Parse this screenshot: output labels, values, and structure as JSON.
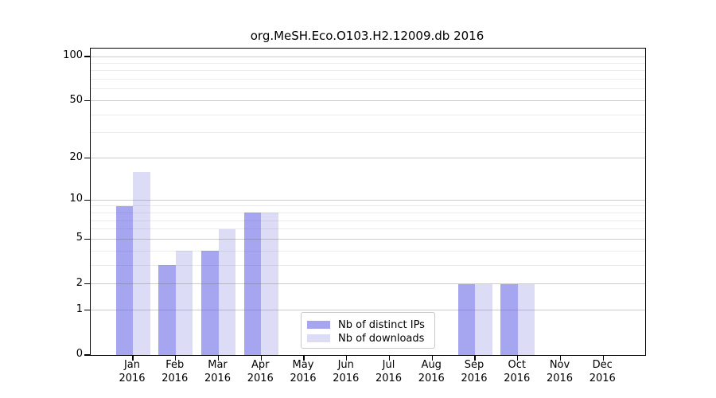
{
  "chart_data": {
    "type": "bar",
    "title": "org.MeSH.Eco.O103.H2.12009.db 2016",
    "year_label": "2016",
    "categories": [
      "Jan",
      "Feb",
      "Mar",
      "Apr",
      "May",
      "Jun",
      "Jul",
      "Aug",
      "Sep",
      "Oct",
      "Nov",
      "Dec"
    ],
    "series": [
      {
        "name": "Nb of distinct IPs",
        "color": "#a5a5f0",
        "values": [
          9,
          3,
          4,
          8,
          0,
          0,
          0,
          0,
          2,
          2,
          0,
          0
        ]
      },
      {
        "name": "Nb of downloads",
        "color": "#dcdcf6",
        "values": [
          16,
          4,
          6,
          8,
          0,
          0,
          0,
          0,
          2,
          2,
          0,
          0
        ]
      }
    ],
    "yscale": "log1p",
    "ylim": [
      0,
      113
    ],
    "yticks_major": [
      0,
      1,
      2,
      5,
      10,
      20,
      50,
      100
    ],
    "yticks_minor": [
      3,
      4,
      6,
      7,
      8,
      9,
      30,
      40,
      60,
      70,
      80,
      90
    ],
    "grid": "on",
    "legend_position": "lower-center-inside",
    "colors": {
      "axis": "#000000",
      "major_grid": "#d0d0d0",
      "minor_grid": "#ececec",
      "background": "#ffffff"
    }
  }
}
